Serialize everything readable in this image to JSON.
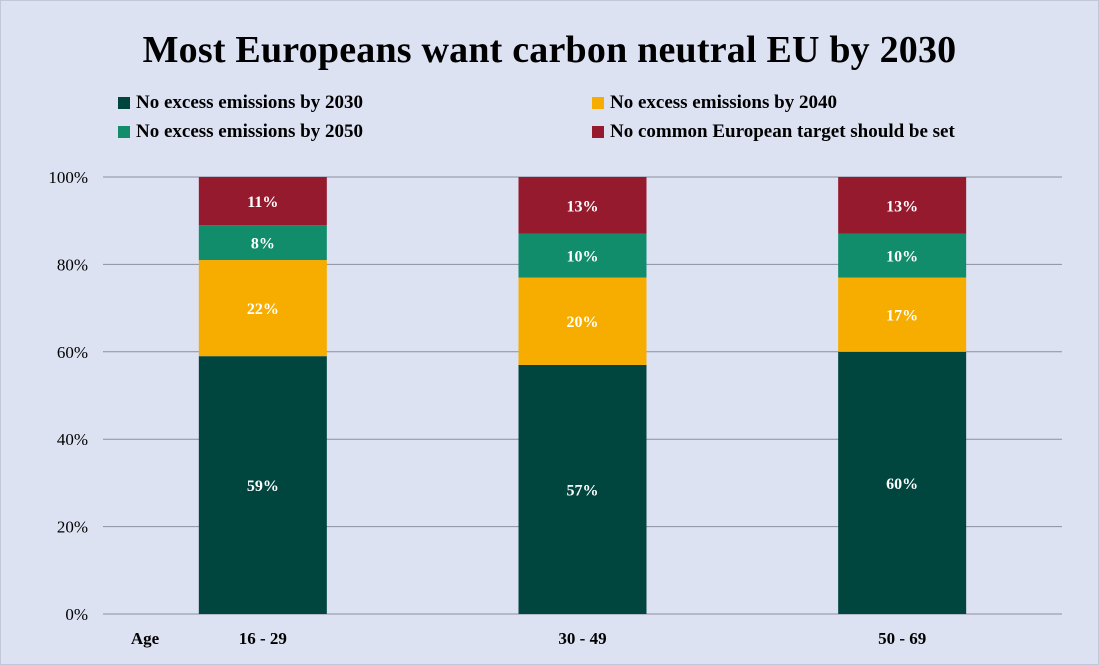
{
  "chart_data": {
    "type": "bar",
    "stacked": true,
    "title": "Most Europeans want carbon neutral EU by 2030",
    "xlabel": "Age",
    "ylabel": "",
    "categories": [
      "16 - 29",
      "30 - 49",
      "50 - 69"
    ],
    "ylim": [
      0,
      100
    ],
    "yticks": [
      0,
      20,
      40,
      60,
      80,
      100
    ],
    "ytick_labels": [
      "0%",
      "20%",
      "40%",
      "60%",
      "80%",
      "100%"
    ],
    "grid": true,
    "legend_position": "top",
    "series": [
      {
        "name": "No excess emissions by 2030",
        "color": "#01453f",
        "values": [
          59,
          57,
          60
        ],
        "labels": [
          "59%",
          "57%",
          "60%"
        ]
      },
      {
        "name": "No excess emissions by 2040",
        "color": "#f7ac00",
        "values": [
          22,
          20,
          17
        ],
        "labels": [
          "22%",
          "20%",
          "17%"
        ]
      },
      {
        "name": "No excess emissions by 2050",
        "color": "#118d6c",
        "values": [
          8,
          10,
          10
        ],
        "labels": [
          "8%",
          "10%",
          "10%"
        ]
      },
      {
        "name": "No common European target should be set",
        "color": "#961a2e",
        "values": [
          11,
          13,
          13
        ],
        "labels": [
          "11%",
          "13%",
          "13%"
        ]
      }
    ]
  }
}
